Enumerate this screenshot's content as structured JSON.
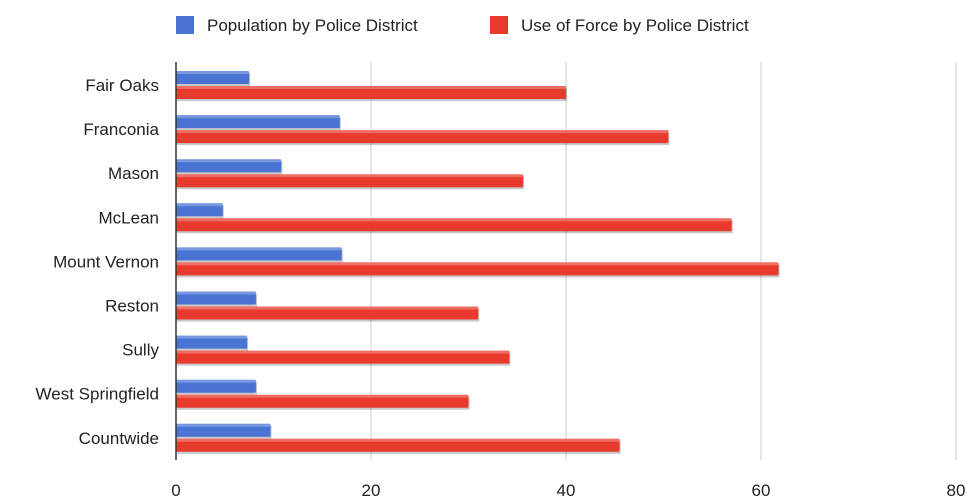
{
  "chart_data": {
    "type": "bar",
    "orientation": "horizontal",
    "title": "",
    "xlabel": "",
    "ylabel": "",
    "categories": [
      "Fair Oaks",
      "Franconia",
      "Mason",
      "McLean",
      "Mount Vernon",
      "Reston",
      "Sully",
      "West Springfield",
      "Countwide"
    ],
    "series": [
      {
        "name": "Population by Police District",
        "color": "#4a74d4",
        "values": [
          7.5,
          16.8,
          10.8,
          4.8,
          17,
          8.2,
          7.3,
          8.2,
          9.7
        ]
      },
      {
        "name": "Use of Force by Police District",
        "color": "#e83b2e",
        "values": [
          40,
          50.5,
          35.6,
          57,
          61.8,
          31,
          34.2,
          30,
          45.5
        ]
      }
    ],
    "xlim": [
      0,
      80
    ],
    "xticks": [
      0,
      20,
      40,
      60,
      80
    ],
    "grid": "vertical",
    "legend_position": "top"
  }
}
